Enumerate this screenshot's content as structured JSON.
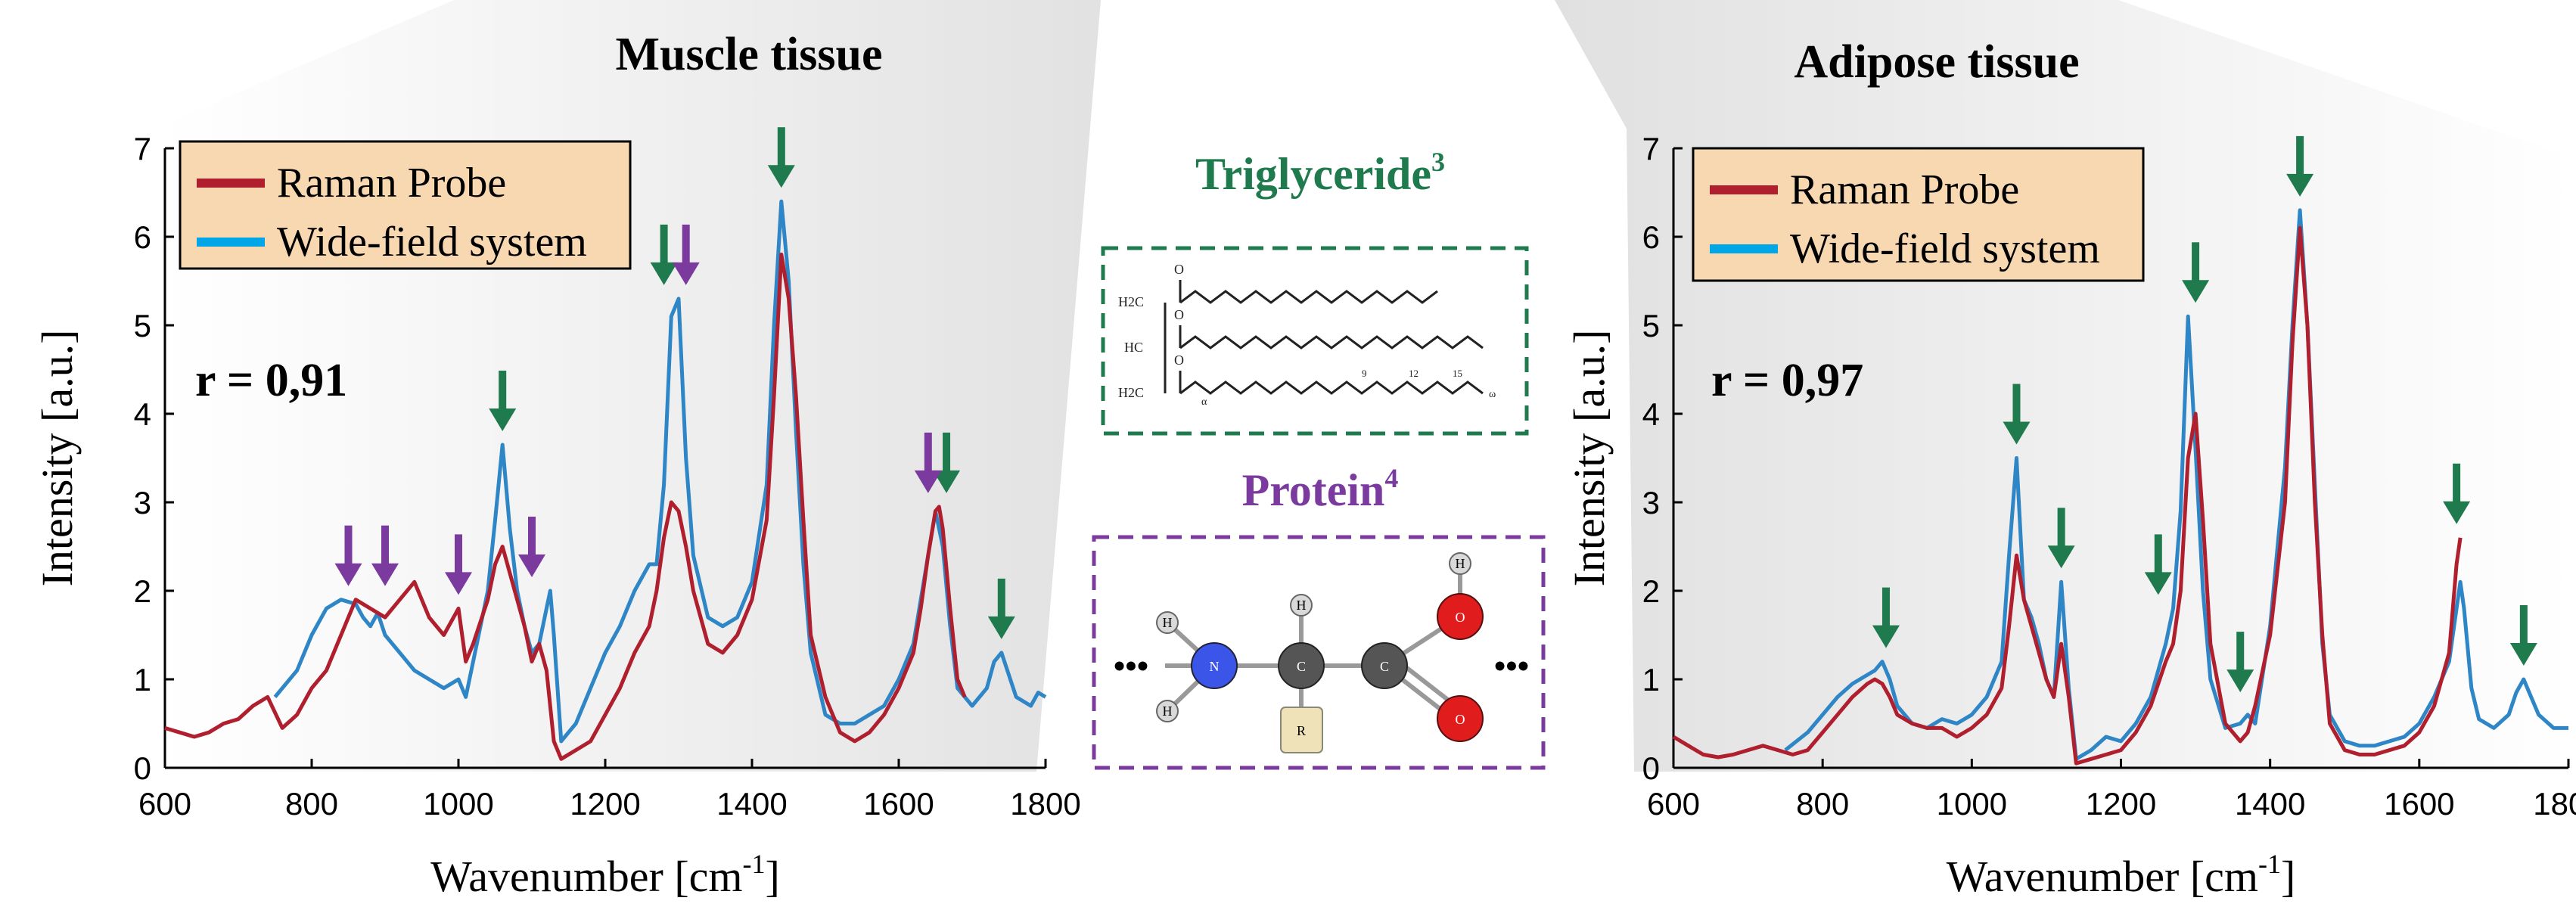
{
  "colors": {
    "raman": "#b01f2e",
    "widefield": "#2f86c6",
    "widefield_legend": "#00a6e6",
    "lipid": "#1f7a4d",
    "protein": "#7b3a9e",
    "legend_bg": "#f8d8b0"
  },
  "center": {
    "triglyceride_title": "Triglyceride",
    "triglyceride_ref": "3",
    "protein_title": "Protein",
    "protein_ref": "4",
    "molecule_labels": {
      "h": "H",
      "hc": "HC",
      "o": "O",
      "n": "N",
      "c": "C",
      "r": "R",
      "chain1": "9",
      "chain2": "12",
      "chain3": "15",
      "omega": "ω",
      "alpha": "α",
      "dots": "•••"
    }
  },
  "chart_data": [
    {
      "type": "line",
      "title": "Muscle tissue",
      "xlabel": "Wavenumber [cm",
      "xlabel_sup": "-1",
      "xlabel_end": "]",
      "ylabel": "Intensity [a.u.]",
      "xlim": [
        600,
        1800
      ],
      "ylim": [
        0,
        7
      ],
      "xticks": [
        600,
        800,
        1000,
        1200,
        1400,
        1600,
        1800
      ],
      "yticks": [
        0,
        1,
        2,
        3,
        4,
        5,
        6,
        7
      ],
      "legend": "top-left",
      "annotation": "r = 0,91",
      "series": [
        {
          "name": "Raman Probe",
          "x": [
            600,
            620,
            640,
            660,
            680,
            700,
            720,
            740,
            760,
            780,
            800,
            820,
            840,
            860,
            880,
            900,
            920,
            940,
            960,
            980,
            1000,
            1010,
            1020,
            1040,
            1050,
            1060,
            1070,
            1080,
            1090,
            1100,
            1110,
            1120,
            1130,
            1140,
            1160,
            1180,
            1200,
            1220,
            1240,
            1260,
            1270,
            1280,
            1290,
            1300,
            1310,
            1320,
            1340,
            1360,
            1380,
            1400,
            1420,
            1430,
            1440,
            1450,
            1460,
            1470,
            1480,
            1500,
            1520,
            1540,
            1560,
            1580,
            1600,
            1620,
            1630,
            1640,
            1650,
            1655,
            1660,
            1670,
            1680,
            1690
          ],
          "y": [
            0.45,
            0.4,
            0.35,
            0.4,
            0.5,
            0.55,
            0.7,
            0.8,
            0.45,
            0.6,
            0.9,
            1.1,
            1.5,
            1.9,
            1.8,
            1.7,
            1.9,
            2.1,
            1.7,
            1.5,
            1.8,
            1.2,
            1.4,
            1.9,
            2.3,
            2.5,
            2.2,
            1.9,
            1.6,
            1.2,
            1.4,
            1.1,
            0.3,
            0.1,
            0.2,
            0.3,
            0.6,
            0.9,
            1.3,
            1.6,
            2.0,
            2.6,
            3.0,
            2.9,
            2.5,
            2.0,
            1.4,
            1.3,
            1.5,
            1.9,
            2.8,
            4.2,
            5.8,
            5.3,
            4.2,
            2.8,
            1.5,
            0.8,
            0.4,
            0.3,
            0.4,
            0.6,
            0.9,
            1.3,
            1.8,
            2.4,
            2.9,
            2.95,
            2.7,
            1.8,
            1.0,
            0.8
          ]
        },
        {
          "name": "Wide-field system",
          "x": [
            750,
            780,
            800,
            820,
            840,
            860,
            870,
            880,
            890,
            900,
            920,
            940,
            960,
            980,
            1000,
            1010,
            1020,
            1040,
            1050,
            1060,
            1070,
            1080,
            1090,
            1100,
            1110,
            1120,
            1125,
            1130,
            1140,
            1160,
            1180,
            1200,
            1220,
            1240,
            1260,
            1270,
            1280,
            1290,
            1300,
            1310,
            1320,
            1340,
            1360,
            1380,
            1400,
            1420,
            1430,
            1440,
            1450,
            1460,
            1470,
            1480,
            1500,
            1520,
            1540,
            1560,
            1580,
            1600,
            1620,
            1630,
            1640,
            1650,
            1660,
            1670,
            1680,
            1700,
            1720,
            1730,
            1740,
            1760,
            1780,
            1790,
            1800
          ],
          "y": [
            0.8,
            1.1,
            1.5,
            1.8,
            1.9,
            1.85,
            1.7,
            1.6,
            1.75,
            1.5,
            1.3,
            1.1,
            1.0,
            0.9,
            1.0,
            0.8,
            1.2,
            2.0,
            2.8,
            3.65,
            2.7,
            2.0,
            1.6,
            1.3,
            1.4,
            1.8,
            2.0,
            1.5,
            0.3,
            0.5,
            0.9,
            1.3,
            1.6,
            2.0,
            2.3,
            2.3,
            3.2,
            5.1,
            5.3,
            3.5,
            2.4,
            1.7,
            1.6,
            1.7,
            2.1,
            3.2,
            5.0,
            6.4,
            5.5,
            3.8,
            2.3,
            1.3,
            0.6,
            0.5,
            0.5,
            0.6,
            0.7,
            1.0,
            1.4,
            1.9,
            2.4,
            2.9,
            2.5,
            1.6,
            0.9,
            0.7,
            0.9,
            1.2,
            1.3,
            0.8,
            0.7,
            0.85,
            0.8
          ]
        }
      ],
      "arrows_lipid": [
        1280,
        1440,
        1060,
        1665,
        1740
      ],
      "arrows_protein": [
        850,
        900,
        1000,
        1100,
        1310,
        1640
      ]
    },
    {
      "type": "line",
      "title": "Adipose tissue",
      "xlabel": "Wavenumber [cm",
      "xlabel_sup": "-1",
      "xlabel_end": "]",
      "ylabel": "Intensity [a.u.]",
      "xlim": [
        600,
        1800
      ],
      "ylim": [
        0,
        7
      ],
      "xticks": [
        600,
        800,
        1000,
        1200,
        1400,
        1600,
        1800
      ],
      "yticks": [
        0,
        1,
        2,
        3,
        4,
        5,
        6,
        7
      ],
      "legend": "top-left",
      "annotation": "r = 0,97",
      "series": [
        {
          "name": "Raman Probe",
          "x": [
            600,
            620,
            640,
            660,
            680,
            700,
            720,
            740,
            760,
            780,
            800,
            820,
            840,
            860,
            870,
            880,
            890,
            900,
            920,
            940,
            960,
            980,
            1000,
            1020,
            1040,
            1050,
            1060,
            1070,
            1080,
            1090,
            1100,
            1110,
            1120,
            1130,
            1140,
            1160,
            1180,
            1200,
            1220,
            1240,
            1260,
            1270,
            1280,
            1290,
            1300,
            1310,
            1320,
            1340,
            1360,
            1370,
            1380,
            1400,
            1420,
            1430,
            1440,
            1450,
            1460,
            1470,
            1480,
            1500,
            1520,
            1540,
            1560,
            1580,
            1600,
            1620,
            1640,
            1650,
            1655
          ],
          "y": [
            0.35,
            0.25,
            0.15,
            0.12,
            0.15,
            0.2,
            0.25,
            0.2,
            0.15,
            0.2,
            0.4,
            0.6,
            0.8,
            0.95,
            1.0,
            0.95,
            0.8,
            0.6,
            0.5,
            0.45,
            0.45,
            0.35,
            0.45,
            0.6,
            0.9,
            1.6,
            2.4,
            1.9,
            1.6,
            1.3,
            1.0,
            0.8,
            1.4,
            0.8,
            0.05,
            0.1,
            0.15,
            0.2,
            0.4,
            0.7,
            1.2,
            1.4,
            2.0,
            3.5,
            4.0,
            2.8,
            1.4,
            0.5,
            0.3,
            0.4,
            0.7,
            1.5,
            3.0,
            4.8,
            6.1,
            5.0,
            3.0,
            1.5,
            0.5,
            0.2,
            0.15,
            0.15,
            0.2,
            0.25,
            0.4,
            0.7,
            1.3,
            2.3,
            2.6
          ]
        },
        {
          "name": "Wide-field system",
          "x": [
            750,
            780,
            800,
            820,
            840,
            860,
            870,
            880,
            890,
            900,
            920,
            940,
            960,
            980,
            1000,
            1020,
            1040,
            1050,
            1060,
            1070,
            1080,
            1090,
            1100,
            1110,
            1120,
            1130,
            1140,
            1160,
            1180,
            1200,
            1220,
            1240,
            1260,
            1270,
            1280,
            1290,
            1300,
            1310,
            1320,
            1340,
            1360,
            1370,
            1380,
            1400,
            1420,
            1430,
            1440,
            1450,
            1460,
            1470,
            1480,
            1500,
            1520,
            1540,
            1560,
            1580,
            1600,
            1620,
            1640,
            1650,
            1655,
            1660,
            1670,
            1680,
            1700,
            1720,
            1730,
            1740,
            1760,
            1780,
            1800
          ],
          "y": [
            0.2,
            0.4,
            0.6,
            0.8,
            0.95,
            1.05,
            1.1,
            1.2,
            1.0,
            0.7,
            0.5,
            0.45,
            0.55,
            0.5,
            0.6,
            0.8,
            1.2,
            2.4,
            3.5,
            1.9,
            1.7,
            1.4,
            1.0,
            0.8,
            2.1,
            0.9,
            0.1,
            0.2,
            0.35,
            0.3,
            0.5,
            0.8,
            1.4,
            1.8,
            2.9,
            5.1,
            3.6,
            2.0,
            1.0,
            0.45,
            0.5,
            0.6,
            0.5,
            1.6,
            3.4,
            5.0,
            6.3,
            5.0,
            3.2,
            1.4,
            0.6,
            0.3,
            0.25,
            0.25,
            0.3,
            0.35,
            0.5,
            0.8,
            1.2,
            1.8,
            2.1,
            1.8,
            0.9,
            0.55,
            0.45,
            0.6,
            0.85,
            1.0,
            0.6,
            0.45,
            0.45
          ]
        }
      ],
      "arrows_lipid": [
        885,
        1060,
        1120,
        1250,
        1300,
        1360,
        1440,
        1650,
        1740
      ],
      "arrows_protein": []
    }
  ]
}
